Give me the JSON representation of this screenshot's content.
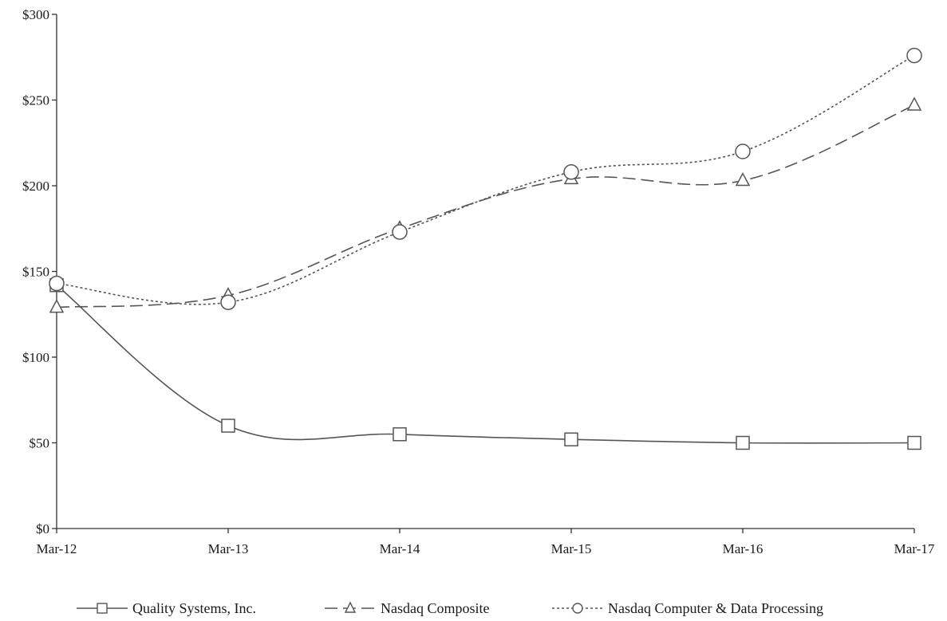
{
  "chart_data": {
    "type": "line",
    "x": [
      "Mar-12",
      "Mar-13",
      "Mar-14",
      "Mar-15",
      "Mar-16",
      "Mar-17"
    ],
    "ylim": [
      0,
      300
    ],
    "yticks": [
      0,
      50,
      100,
      150,
      200,
      250,
      300
    ],
    "ytick_labels": [
      "$0",
      "$50",
      "$100",
      "$150",
      "$200",
      "$250",
      "$300"
    ],
    "grid": false,
    "legend_position": "bottom",
    "series": [
      {
        "name": "Quality Systems, Inc.",
        "values": [
          142,
          60,
          55,
          52,
          50,
          50
        ],
        "marker": "square",
        "line_style": "solid",
        "color": "#555555"
      },
      {
        "name": "Nasdaq Composite",
        "values": [
          129,
          136,
          175,
          204,
          203,
          247
        ],
        "marker": "triangle",
        "line_style": "dashed",
        "color": "#555555"
      },
      {
        "name": "Nasdaq Computer & Data Processing",
        "values": [
          143,
          132,
          173,
          208,
          220,
          276
        ],
        "marker": "circle",
        "line_style": "dotted",
        "color": "#555555"
      }
    ]
  }
}
